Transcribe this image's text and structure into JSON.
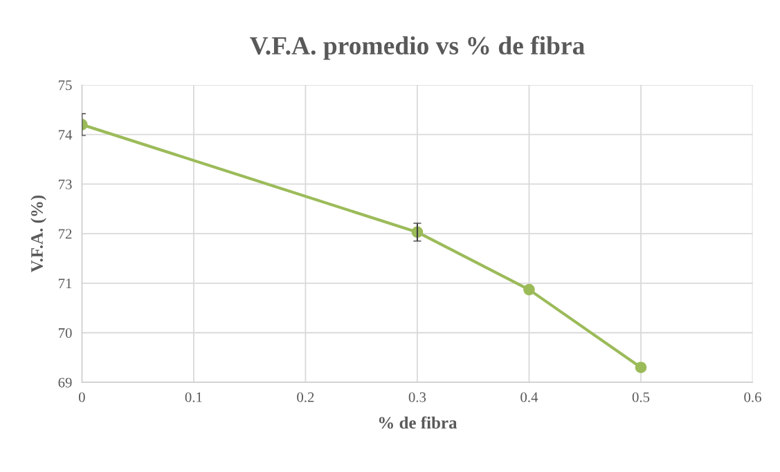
{
  "chart_data": {
    "type": "line",
    "title": "V.F.A. promedio vs % de fibra",
    "xlabel": "% de fibra",
    "ylabel": "V.F.A. (%)",
    "x": [
      0,
      0.3,
      0.4,
      0.5
    ],
    "series": [
      {
        "color": "#9bbb59",
        "values": [
          74.2,
          72.03,
          70.87,
          69.3
        ],
        "errors": [
          0.22,
          0.18,
          null,
          null
        ]
      }
    ],
    "xlim": [
      0,
      0.6
    ],
    "xticks": [
      0,
      0.1,
      0.2,
      0.3,
      0.4,
      0.5,
      0.6
    ],
    "ylim": [
      69,
      75
    ],
    "yticks": [
      69,
      70,
      71,
      72,
      73,
      74,
      75
    ],
    "grid": true,
    "marker": "circle",
    "line_style": "solid",
    "legend": false
  }
}
